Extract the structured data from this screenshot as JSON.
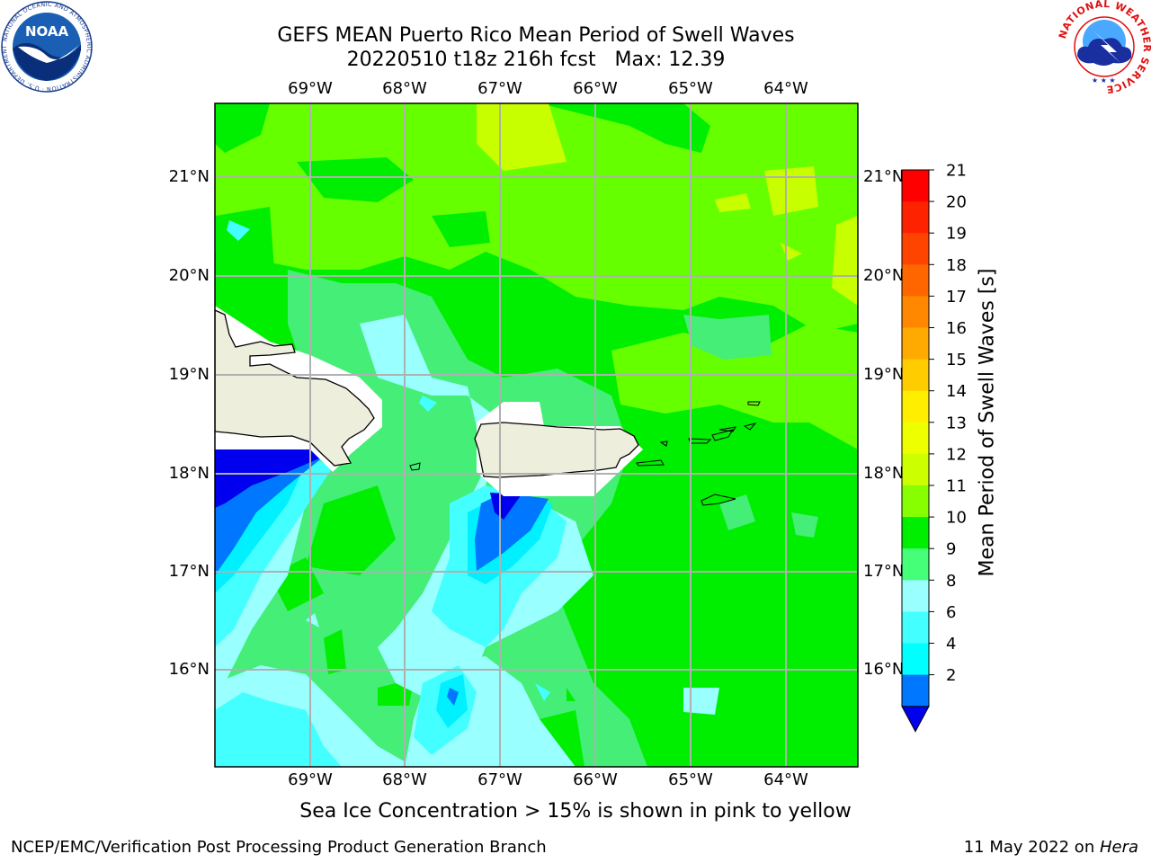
{
  "title": {
    "line1": "GEFS MEAN Puerto Rico Mean Period of Swell Waves",
    "line2": "20220510 t18z 216h fcst   Max: 12.39"
  },
  "map": {
    "lon_labels": [
      "69°W",
      "68°W",
      "67°W",
      "66°W",
      "65°W",
      "64°W"
    ],
    "lat_labels": [
      "21°N",
      "20°N",
      "19°N",
      "18°N",
      "17°N",
      "16°N"
    ],
    "colors": {
      "land": "#eeeedd",
      "grid": "#b0b0b0",
      "green": "#00ee00",
      "light_green": "#66ff00",
      "yellow_green": "#c8ff00",
      "medium_green": "#44ee77",
      "pale_cyan": "#99ffff",
      "cyan": "#44ffff",
      "bright_cyan": "#00f0ff",
      "blue": "#0077ff",
      "deep_blue": "#0000ee"
    }
  },
  "colorbar": {
    "label": "Mean Period of Swell Waves [s]",
    "ticks": [
      "21",
      "20",
      "19",
      "18",
      "17",
      "16",
      "15",
      "14",
      "13",
      "12",
      "11",
      "10",
      "9",
      "8",
      "6",
      "4",
      "2"
    ],
    "colors_top_to_bottom": [
      "#ff0000",
      "#ff2200",
      "#ff4400",
      "#ff6600",
      "#ff8800",
      "#ffaa00",
      "#ffcc00",
      "#ffee00",
      "#eeff00",
      "#ccff00",
      "#88ff00",
      "#00ee00",
      "#44ff77",
      "#99ffff",
      "#44ffff",
      "#00ffff",
      "#0077ff"
    ],
    "extend_color": "#0000ee"
  },
  "caption": "Sea Ice Concentration > 15% is shown in pink to yellow",
  "footer": {
    "left": "NCEP/EMC/Verification Post Processing Product Generation Branch",
    "right_date": "11 May 2022 on ",
    "right_host": "Hera"
  },
  "logos": {
    "noaa_text": "NOAA",
    "noaa_ring": "NATIONAL OCEANIC AND ATMOSPHERIC ADMINISTRATION · U.S. DEPARTMENT OF COMMERCE",
    "nws_ring": "NATIONAL WEATHER SERVICE"
  }
}
